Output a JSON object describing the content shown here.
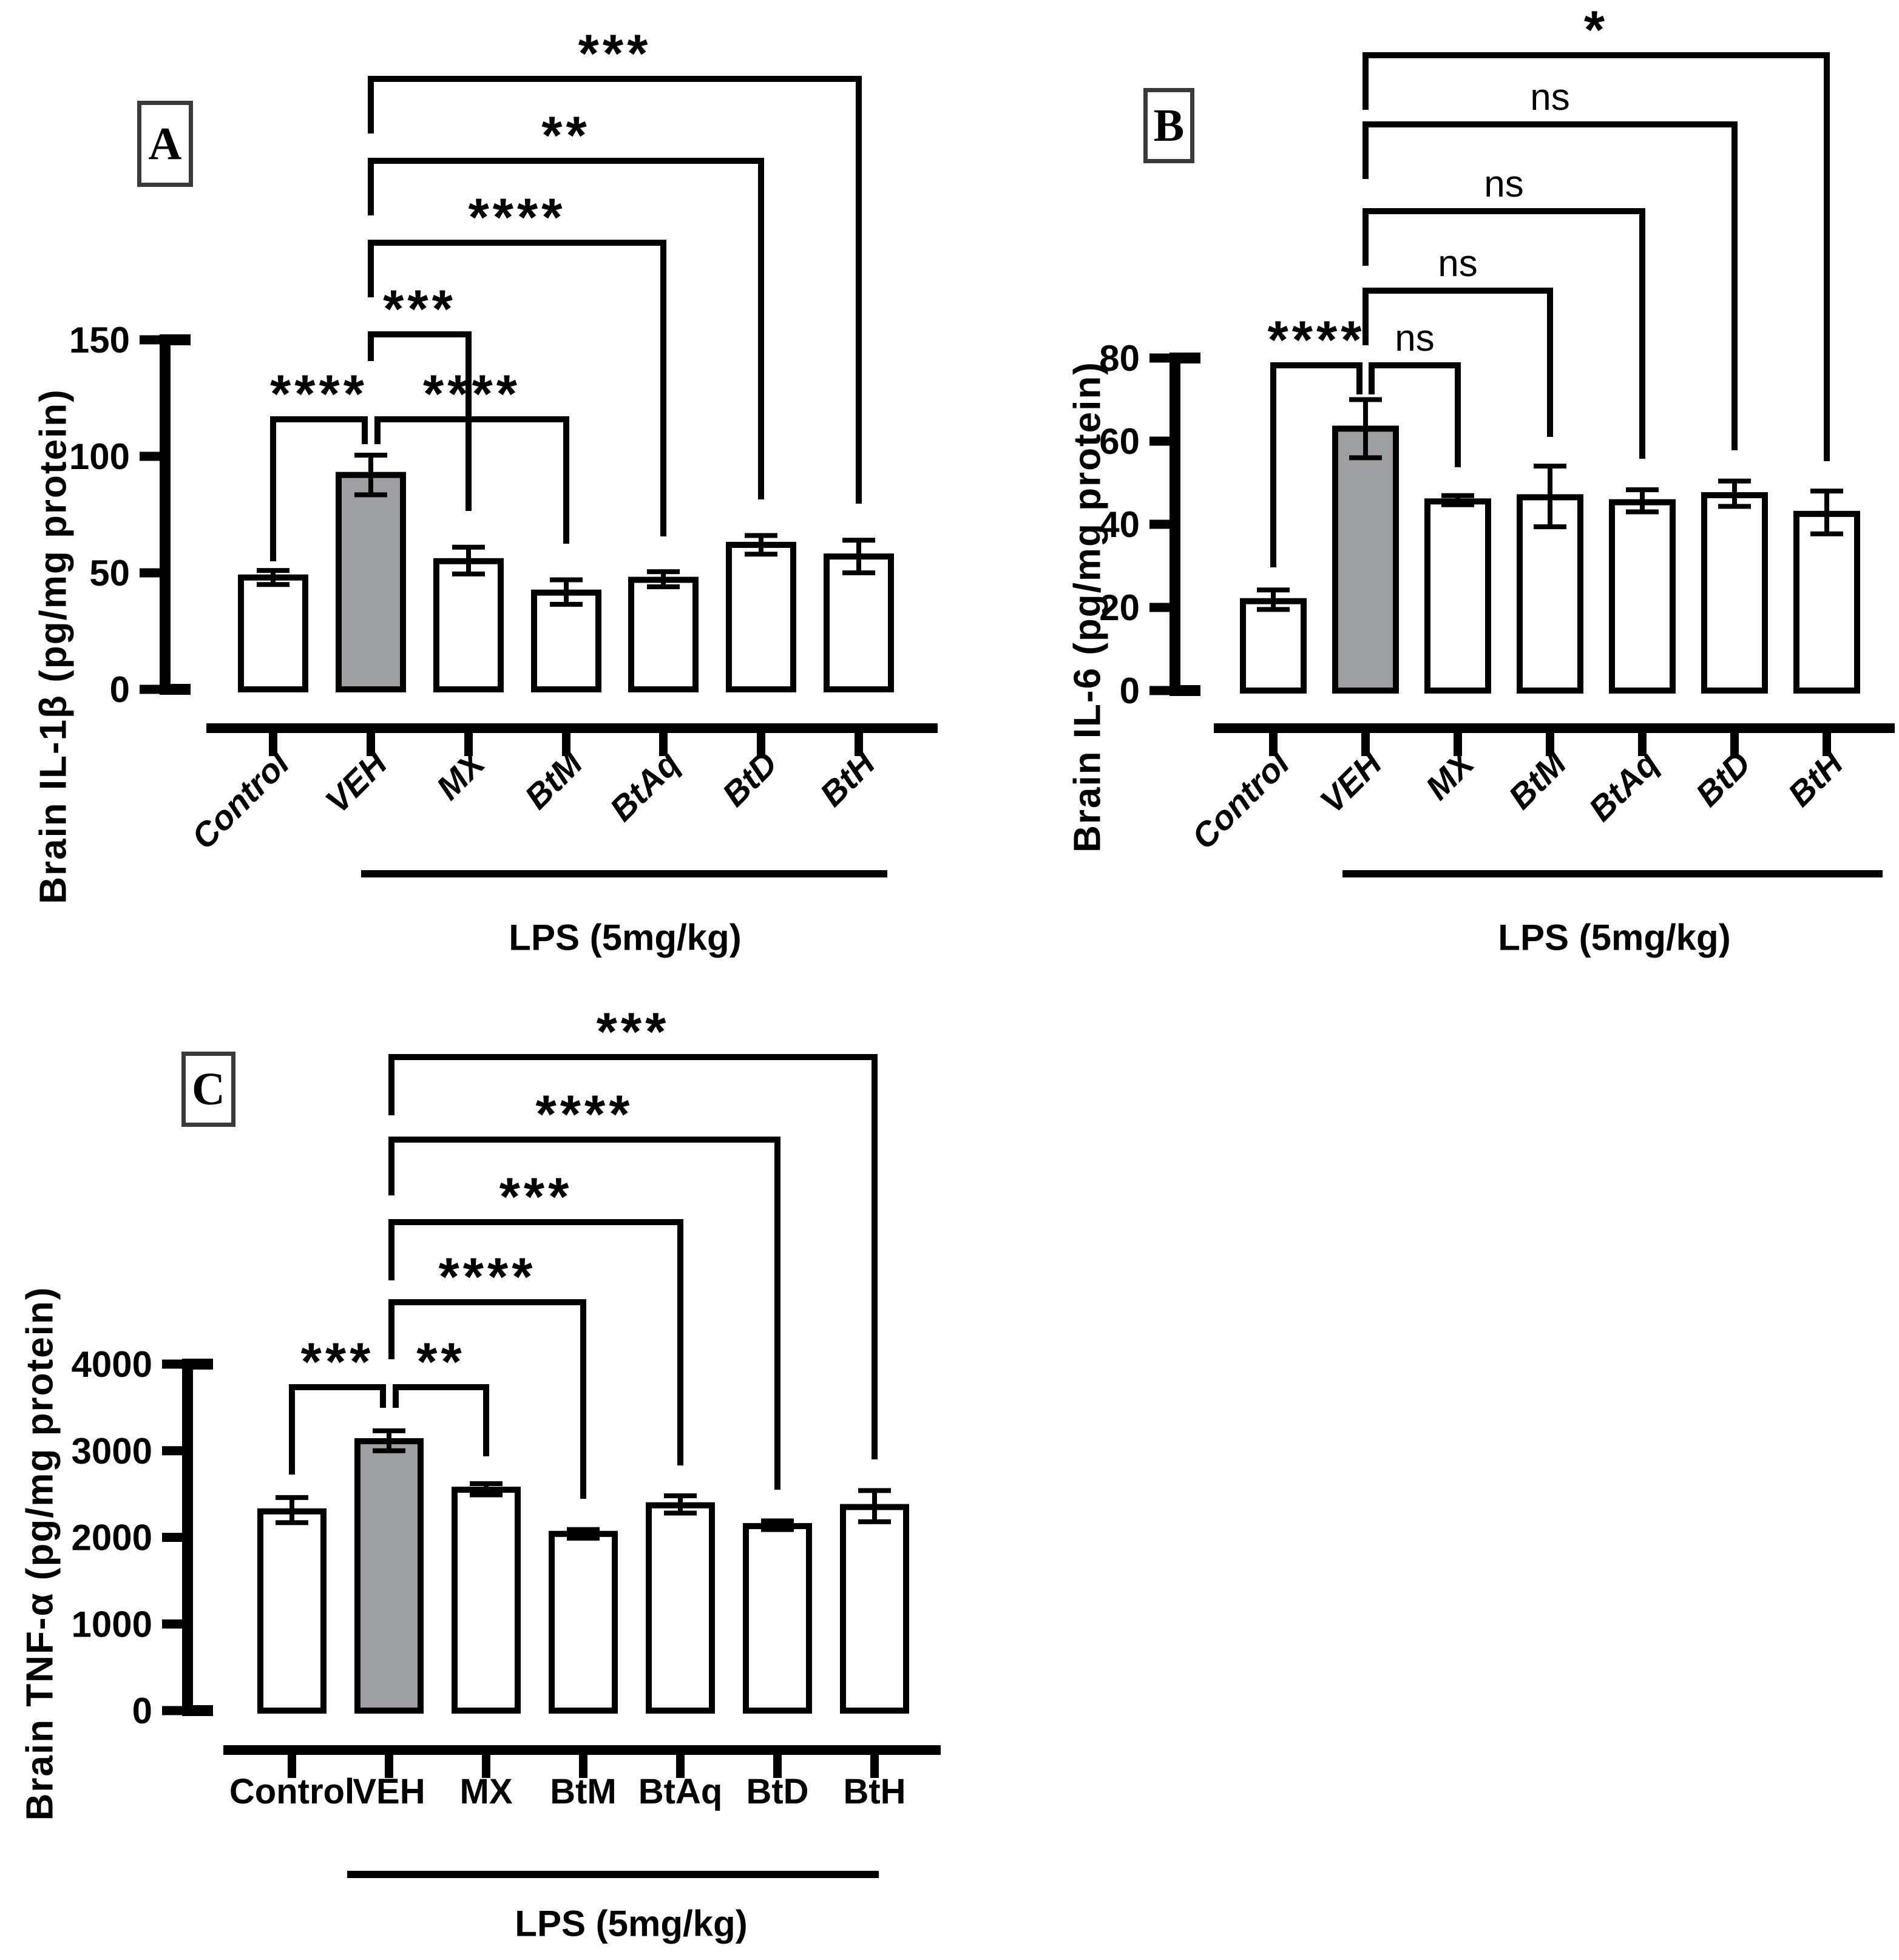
{
  "colors": {
    "background": "#ffffff",
    "bar_fill": "#ffffff",
    "highlight_fill": "#9e9fa3",
    "stroke": "#000000",
    "letter_box_stroke": "#3a3a3a"
  },
  "chart_data": [
    {
      "id": "A",
      "type": "bar",
      "panel_letter": "A",
      "ylabel": "Brain IL-1β (pg/mg protein)",
      "group_underline_label": "LPS (5mg/kg)",
      "categories": [
        "Control",
        "VEH",
        "MX",
        "BtM",
        "BtAq",
        "BtD",
        "BtH"
      ],
      "values": [
        48,
        92,
        55,
        41.5,
        47,
        62,
        57
      ],
      "err_low": [
        45,
        83.5,
        49.5,
        36.5,
        44,
        58,
        50
      ],
      "err_high": [
        51,
        100.5,
        61,
        47,
        50.5,
        66,
        64
      ],
      "highlight_category": "VEH",
      "ylim": [
        0,
        150
      ],
      "yticks": [
        0,
        50,
        100,
        150
      ],
      "xtick_italic_rotated": true,
      "lps_span": [
        "VEH",
        "BtH"
      ],
      "significance": [
        {
          "a": "Control",
          "b": "VEH",
          "label": "****"
        },
        {
          "a": "VEH",
          "b": "MX",
          "label": "***"
        },
        {
          "a": "VEH",
          "b": "BtM",
          "label": "****"
        },
        {
          "a": "VEH",
          "b": "BtAq",
          "label": "****"
        },
        {
          "a": "VEH",
          "b": "BtD",
          "label": "**"
        },
        {
          "a": "VEH",
          "b": "BtH",
          "label": "***"
        }
      ]
    },
    {
      "id": "B",
      "type": "bar",
      "panel_letter": "B",
      "ylabel": "Brain IL-6 (pg/mg protein)",
      "group_underline_label": "LPS (5mg/kg)",
      "categories": [
        "Control",
        "VEH",
        "MX",
        "BtM",
        "BtAq",
        "BtD",
        "BtH"
      ],
      "values": [
        21.5,
        63,
        45.5,
        46.5,
        45.3,
        47,
        42.5
      ],
      "err_low": [
        19.5,
        56,
        44.7,
        39.4,
        43,
        44.3,
        37.7
      ],
      "err_high": [
        24.2,
        70,
        46.9,
        54,
        48.3,
        50.4,
        48
      ],
      "highlight_category": "VEH",
      "ylim": [
        0,
        80
      ],
      "yticks": [
        0,
        20,
        40,
        60,
        80
      ],
      "xtick_italic_rotated": true,
      "lps_span": [
        "VEH",
        "BtH"
      ],
      "significance": [
        {
          "a": "Control",
          "b": "VEH",
          "label": "****"
        },
        {
          "a": "VEH",
          "b": "MX",
          "label": "ns"
        },
        {
          "a": "VEH",
          "b": "BtM",
          "label": "ns"
        },
        {
          "a": "VEH",
          "b": "BtAq",
          "label": "ns"
        },
        {
          "a": "VEH",
          "b": "BtD",
          "label": "ns"
        },
        {
          "a": "VEH",
          "b": "BtH",
          "label": "*"
        }
      ]
    },
    {
      "id": "C",
      "type": "bar",
      "panel_letter": "C",
      "ylabel": "Brain TNF-α (pg/mg protein)",
      "group_underline_label": "LPS (5mg/kg)",
      "categories": [
        "Control",
        "VEH",
        "MX",
        "BtM",
        "BtAq",
        "BtD",
        "BtH"
      ],
      "values": [
        2300,
        3110,
        2550,
        2040,
        2370,
        2130,
        2350
      ],
      "err_low": [
        2170,
        3000,
        2490,
        1990,
        2280,
        2090,
        2180
      ],
      "err_high": [
        2460,
        3230,
        2620,
        2090,
        2480,
        2190,
        2540
      ],
      "highlight_category": "VEH",
      "ylim": [
        0,
        4000
      ],
      "yticks": [
        0,
        1000,
        2000,
        3000,
        4000
      ],
      "xtick_italic_rotated": false,
      "lps_span": [
        "VEH",
        "BtH"
      ],
      "significance": [
        {
          "a": "Control",
          "b": "VEH",
          "label": "***"
        },
        {
          "a": "VEH",
          "b": "MX",
          "label": "**"
        },
        {
          "a": "VEH",
          "b": "BtM",
          "label": "****"
        },
        {
          "a": "VEH",
          "b": "BtAq",
          "label": "***"
        },
        {
          "a": "VEH",
          "b": "BtD",
          "label": "****"
        },
        {
          "a": "VEH",
          "b": "BtH",
          "label": "***"
        }
      ]
    }
  ]
}
